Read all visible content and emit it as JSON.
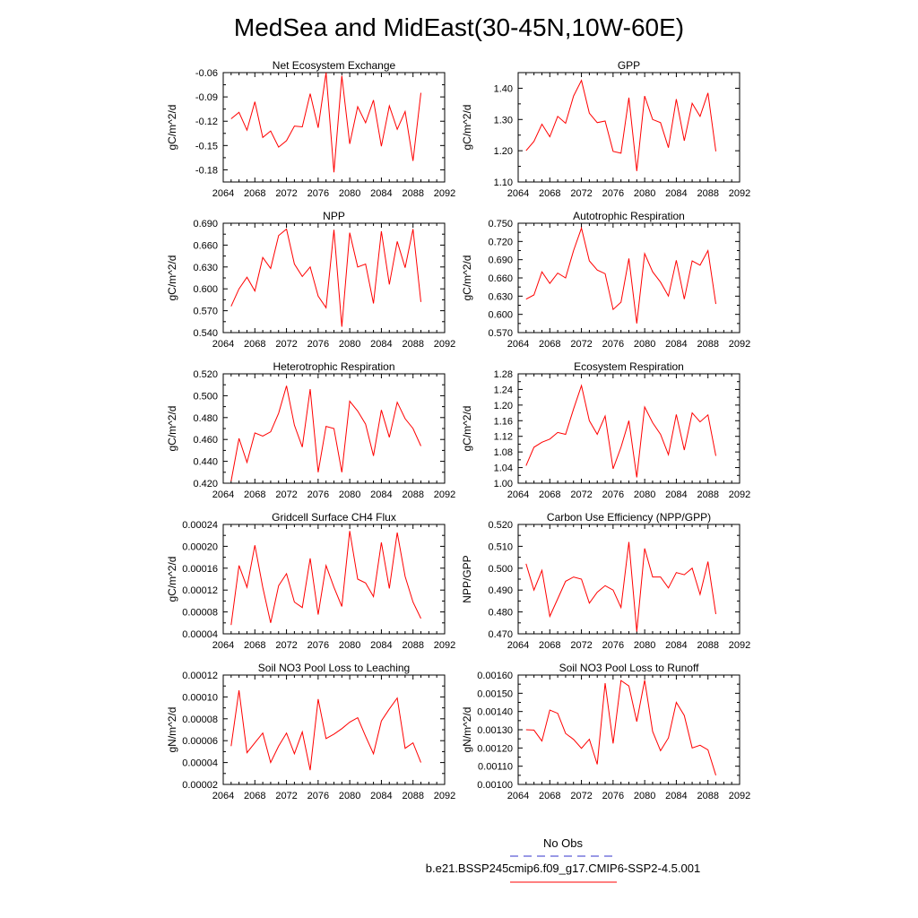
{
  "page_title": "MedSea and MidEast(30-45N,10W-60E)",
  "legend": {
    "items": [
      {
        "label": "No Obs",
        "color": "#3333cc",
        "style": "dashed"
      },
      {
        "label": "b.e21.BSSP245cmip6.f09_g17.CMIP6-SSP2-4.5.001",
        "color": "#ff0000",
        "style": "solid"
      }
    ]
  },
  "chart_data": [
    {
      "type": "line",
      "title": "Net Ecosystem Exchange",
      "ylabel": "gC/m^2/d",
      "xlim": [
        2064,
        2092
      ],
      "xticks": [
        "2064",
        "2068",
        "2072",
        "2076",
        "2080",
        "2084",
        "2088",
        "2092"
      ],
      "ylim": [
        -0.195,
        -0.06
      ],
      "yticks": [
        "-0.06",
        "-0.09",
        "-0.12",
        "-0.15",
        "-0.18"
      ],
      "ytick_values": [
        -0.06,
        -0.09,
        -0.12,
        -0.15,
        -0.18
      ],
      "x": [
        2065,
        2066,
        2067,
        2068,
        2069,
        2070,
        2071,
        2072,
        2073,
        2074,
        2075,
        2076,
        2077,
        2078,
        2079,
        2080,
        2081,
        2082,
        2083,
        2084,
        2085,
        2086,
        2087,
        2088,
        2089
      ],
      "series": [
        {
          "color": "#ff0000",
          "values": [
            -0.117,
            -0.109,
            -0.131,
            -0.096,
            -0.14,
            -0.132,
            -0.152,
            -0.144,
            -0.126,
            -0.127,
            -0.086,
            -0.128,
            -0.06,
            -0.183,
            -0.064,
            -0.148,
            -0.102,
            -0.122,
            -0.094,
            -0.151,
            -0.101,
            -0.13,
            -0.108,
            -0.169,
            -0.085
          ]
        }
      ]
    },
    {
      "type": "line",
      "title": "GPP",
      "ylabel": "gC/m^2/d",
      "xlim": [
        2064,
        2092
      ],
      "xticks": [
        "2064",
        "2068",
        "2072",
        "2076",
        "2080",
        "2084",
        "2088",
        "2092"
      ],
      "ylim": [
        1.1,
        1.45
      ],
      "yticks": [
        "1.40",
        "1.30",
        "1.20",
        "1.10"
      ],
      "ytick_values": [
        1.4,
        1.3,
        1.2,
        1.1
      ],
      "x": [
        2065,
        2066,
        2067,
        2068,
        2069,
        2070,
        2071,
        2072,
        2073,
        2074,
        2075,
        2076,
        2077,
        2078,
        2079,
        2080,
        2081,
        2082,
        2083,
        2084,
        2085,
        2086,
        2087,
        2088,
        2089
      ],
      "series": [
        {
          "color": "#ff0000",
          "values": [
            1.2,
            1.23,
            1.285,
            1.245,
            1.31,
            1.288,
            1.375,
            1.425,
            1.32,
            1.29,
            1.295,
            1.198,
            1.192,
            1.37,
            1.135,
            1.375,
            1.3,
            1.29,
            1.21,
            1.365,
            1.232,
            1.352,
            1.31,
            1.385,
            1.198
          ]
        }
      ]
    },
    {
      "type": "line",
      "title": "NPP",
      "ylabel": "gC/m^2/d",
      "xlim": [
        2064,
        2092
      ],
      "xticks": [
        "2064",
        "2068",
        "2072",
        "2076",
        "2080",
        "2084",
        "2088",
        "2092"
      ],
      "ylim": [
        0.54,
        0.69
      ],
      "yticks": [
        "0.690",
        "0.660",
        "0.630",
        "0.600",
        "0.570",
        "0.540"
      ],
      "ytick_values": [
        0.69,
        0.66,
        0.63,
        0.6,
        0.57,
        0.54
      ],
      "x": [
        2065,
        2066,
        2067,
        2068,
        2069,
        2070,
        2071,
        2072,
        2073,
        2074,
        2075,
        2076,
        2077,
        2078,
        2079,
        2080,
        2081,
        2082,
        2083,
        2084,
        2085,
        2086,
        2087,
        2088,
        2089
      ],
      "series": [
        {
          "color": "#ff0000",
          "values": [
            0.576,
            0.6,
            0.616,
            0.597,
            0.643,
            0.628,
            0.673,
            0.682,
            0.634,
            0.617,
            0.63,
            0.59,
            0.574,
            0.681,
            0.548,
            0.677,
            0.63,
            0.634,
            0.58,
            0.679,
            0.606,
            0.665,
            0.629,
            0.682,
            0.582
          ]
        }
      ]
    },
    {
      "type": "line",
      "title": "Autotrophic Respiration",
      "ylabel": "gC/m^2/d",
      "xlim": [
        2064,
        2092
      ],
      "xticks": [
        "2064",
        "2068",
        "2072",
        "2076",
        "2080",
        "2084",
        "2088",
        "2092"
      ],
      "ylim": [
        0.57,
        0.75
      ],
      "yticks": [
        "0.750",
        "0.720",
        "0.690",
        "0.660",
        "0.630",
        "0.600",
        "0.570"
      ],
      "ytick_values": [
        0.75,
        0.72,
        0.69,
        0.66,
        0.63,
        0.6,
        0.57
      ],
      "x": [
        2065,
        2066,
        2067,
        2068,
        2069,
        2070,
        2071,
        2072,
        2073,
        2074,
        2075,
        2076,
        2077,
        2078,
        2079,
        2080,
        2081,
        2082,
        2083,
        2084,
        2085,
        2086,
        2087,
        2088,
        2089
      ],
      "series": [
        {
          "color": "#ff0000",
          "values": [
            0.625,
            0.632,
            0.67,
            0.651,
            0.668,
            0.66,
            0.705,
            0.742,
            0.688,
            0.673,
            0.667,
            0.608,
            0.62,
            0.692,
            0.585,
            0.7,
            0.67,
            0.653,
            0.63,
            0.689,
            0.625,
            0.688,
            0.681,
            0.705,
            0.617
          ]
        }
      ]
    },
    {
      "type": "line",
      "title": "Heterotrophic Respiration",
      "ylabel": "gC/m^2/d",
      "xlim": [
        2064,
        2092
      ],
      "xticks": [
        "2064",
        "2068",
        "2072",
        "2076",
        "2080",
        "2084",
        "2088",
        "2092"
      ],
      "ylim": [
        0.42,
        0.52
      ],
      "yticks": [
        "0.520",
        "0.500",
        "0.480",
        "0.460",
        "0.440",
        "0.420"
      ],
      "ytick_values": [
        0.52,
        0.5,
        0.48,
        0.46,
        0.44,
        0.42
      ],
      "x": [
        2065,
        2066,
        2067,
        2068,
        2069,
        2070,
        2071,
        2072,
        2073,
        2074,
        2075,
        2076,
        2077,
        2078,
        2079,
        2080,
        2081,
        2082,
        2083,
        2084,
        2085,
        2086,
        2087,
        2088,
        2089
      ],
      "series": [
        {
          "color": "#ff0000",
          "values": [
            0.422,
            0.461,
            0.439,
            0.466,
            0.463,
            0.467,
            0.484,
            0.509,
            0.473,
            0.453,
            0.506,
            0.43,
            0.472,
            0.47,
            0.43,
            0.495,
            0.486,
            0.474,
            0.445,
            0.487,
            0.462,
            0.494,
            0.479,
            0.47,
            0.454
          ]
        }
      ]
    },
    {
      "type": "line",
      "title": "Ecosystem Respiration",
      "ylabel": "gC/m^2/d",
      "xlim": [
        2064,
        2092
      ],
      "xticks": [
        "2064",
        "2068",
        "2072",
        "2076",
        "2080",
        "2084",
        "2088",
        "2092"
      ],
      "ylim": [
        1.0,
        1.28
      ],
      "yticks": [
        "1.28",
        "1.24",
        "1.20",
        "1.16",
        "1.12",
        "1.08",
        "1.04",
        "1.00"
      ],
      "ytick_values": [
        1.28,
        1.24,
        1.2,
        1.16,
        1.12,
        1.08,
        1.04,
        1.0
      ],
      "x": [
        2065,
        2066,
        2067,
        2068,
        2069,
        2070,
        2071,
        2072,
        2073,
        2074,
        2075,
        2076,
        2077,
        2078,
        2079,
        2080,
        2081,
        2082,
        2083,
        2084,
        2085,
        2086,
        2087,
        2088,
        2089
      ],
      "series": [
        {
          "color": "#ff0000",
          "values": [
            1.045,
            1.092,
            1.105,
            1.113,
            1.13,
            1.125,
            1.19,
            1.25,
            1.16,
            1.125,
            1.172,
            1.037,
            1.092,
            1.16,
            1.015,
            1.195,
            1.155,
            1.125,
            1.073,
            1.176,
            1.085,
            1.18,
            1.157,
            1.175,
            1.07
          ]
        }
      ]
    },
    {
      "type": "line",
      "title": "Gridcell Surface CH4 Flux",
      "ylabel": "gC/m^2/d",
      "xlim": [
        2064,
        2092
      ],
      "xticks": [
        "2064",
        "2068",
        "2072",
        "2076",
        "2080",
        "2084",
        "2088",
        "2092"
      ],
      "ylim": [
        4e-05,
        0.00024
      ],
      "yticks": [
        "0.00024",
        "0.00020",
        "0.00016",
        "0.00012",
        "0.00008",
        "0.00004"
      ],
      "ytick_values": [
        0.00024,
        0.0002,
        0.00016,
        0.00012,
        8e-05,
        4e-05
      ],
      "x": [
        2065,
        2066,
        2067,
        2068,
        2069,
        2070,
        2071,
        2072,
        2073,
        2074,
        2075,
        2076,
        2077,
        2078,
        2079,
        2080,
        2081,
        2082,
        2083,
        2084,
        2085,
        2086,
        2087,
        2088,
        2089
      ],
      "series": [
        {
          "color": "#ff0000",
          "values": [
            5.6e-05,
            0.000165,
            0.000125,
            0.000202,
            0.000125,
            6e-05,
            0.000128,
            0.00015,
            9.8e-05,
            8.8e-05,
            0.000178,
            7.5e-05,
            0.000165,
            0.000125,
            9e-05,
            0.000228,
            0.00014,
            0.000133,
            0.000108,
            0.000207,
            0.000123,
            0.000225,
            0.000145,
            9.8e-05,
            6.8e-05
          ]
        }
      ]
    },
    {
      "type": "line",
      "title": "Carbon Use Efficiency (NPP/GPP)",
      "ylabel": "NPP/GPP",
      "xlim": [
        2064,
        2092
      ],
      "xticks": [
        "2064",
        "2068",
        "2072",
        "2076",
        "2080",
        "2084",
        "2088",
        "2092"
      ],
      "ylim": [
        0.47,
        0.52
      ],
      "yticks": [
        "0.520",
        "0.510",
        "0.500",
        "0.490",
        "0.480",
        "0.470"
      ],
      "ytick_values": [
        0.52,
        0.51,
        0.5,
        0.49,
        0.48,
        0.47
      ],
      "x": [
        2065,
        2066,
        2067,
        2068,
        2069,
        2070,
        2071,
        2072,
        2073,
        2074,
        2075,
        2076,
        2077,
        2078,
        2079,
        2080,
        2081,
        2082,
        2083,
        2084,
        2085,
        2086,
        2087,
        2088,
        2089
      ],
      "series": [
        {
          "color": "#ff0000",
          "values": [
            0.502,
            0.49,
            0.499,
            0.478,
            0.486,
            0.494,
            0.496,
            0.495,
            0.484,
            0.489,
            0.492,
            0.49,
            0.482,
            0.512,
            0.471,
            0.509,
            0.496,
            0.496,
            0.491,
            0.498,
            0.497,
            0.5,
            0.488,
            0.503,
            0.479
          ]
        }
      ]
    },
    {
      "type": "line",
      "title": "Soil NO3 Pool Loss to Leaching",
      "ylabel": "gN/m^2/d",
      "xlim": [
        2064,
        2092
      ],
      "xticks": [
        "2064",
        "2068",
        "2072",
        "2076",
        "2080",
        "2084",
        "2088",
        "2092"
      ],
      "ylim": [
        2e-05,
        0.00012
      ],
      "yticks": [
        "0.00012",
        "0.00010",
        "0.00008",
        "0.00006",
        "0.00004",
        "0.00002"
      ],
      "ytick_values": [
        0.00012,
        0.0001,
        8e-05,
        6e-05,
        4e-05,
        2e-05
      ],
      "x": [
        2065,
        2066,
        2067,
        2068,
        2069,
        2070,
        2071,
        2072,
        2073,
        2074,
        2075,
        2076,
        2077,
        2078,
        2079,
        2080,
        2081,
        2082,
        2083,
        2084,
        2085,
        2086,
        2087,
        2088,
        2089
      ],
      "series": [
        {
          "color": "#ff0000",
          "values": [
            5.5e-05,
            0.000106,
            4.9e-05,
            5.8e-05,
            6.7e-05,
            4e-05,
            5.5e-05,
            6.7e-05,
            4.8e-05,
            6.8e-05,
            3.3e-05,
            9.8e-05,
            6.2e-05,
            6.6e-05,
            7.1e-05,
            7.7e-05,
            8.1e-05,
            6.4e-05,
            4.8e-05,
            7.8e-05,
            8.9e-05,
            9.9e-05,
            5.3e-05,
            5.8e-05,
            4e-05
          ]
        }
      ]
    },
    {
      "type": "line",
      "title": "Soil NO3 Pool Loss to Runoff",
      "ylabel": "gN/m^2/d",
      "xlim": [
        2064,
        2092
      ],
      "xticks": [
        "2064",
        "2068",
        "2072",
        "2076",
        "2080",
        "2084",
        "2088",
        "2092"
      ],
      "ylim": [
        0.001,
        0.0016
      ],
      "yticks": [
        "0.00160",
        "0.00150",
        "0.00140",
        "0.00130",
        "0.00120",
        "0.00110",
        "0.00100"
      ],
      "ytick_values": [
        0.0016,
        0.0015,
        0.0014,
        0.0013,
        0.0012,
        0.0011,
        0.001
      ],
      "x": [
        2065,
        2066,
        2067,
        2068,
        2069,
        2070,
        2071,
        2072,
        2073,
        2074,
        2075,
        2076,
        2077,
        2078,
        2079,
        2080,
        2081,
        2082,
        2083,
        2084,
        2085,
        2086,
        2087,
        2088,
        2089
      ],
      "series": [
        {
          "color": "#ff0000",
          "values": [
            0.0013,
            0.001298,
            0.001238,
            0.001408,
            0.00139,
            0.00128,
            0.001247,
            0.001198,
            0.001248,
            0.00111,
            0.001555,
            0.001225,
            0.00157,
            0.00154,
            0.001345,
            0.001572,
            0.00129,
            0.001185,
            0.001255,
            0.00145,
            0.001378,
            0.0012,
            0.001215,
            0.00119,
            0.00105
          ]
        }
      ]
    }
  ]
}
